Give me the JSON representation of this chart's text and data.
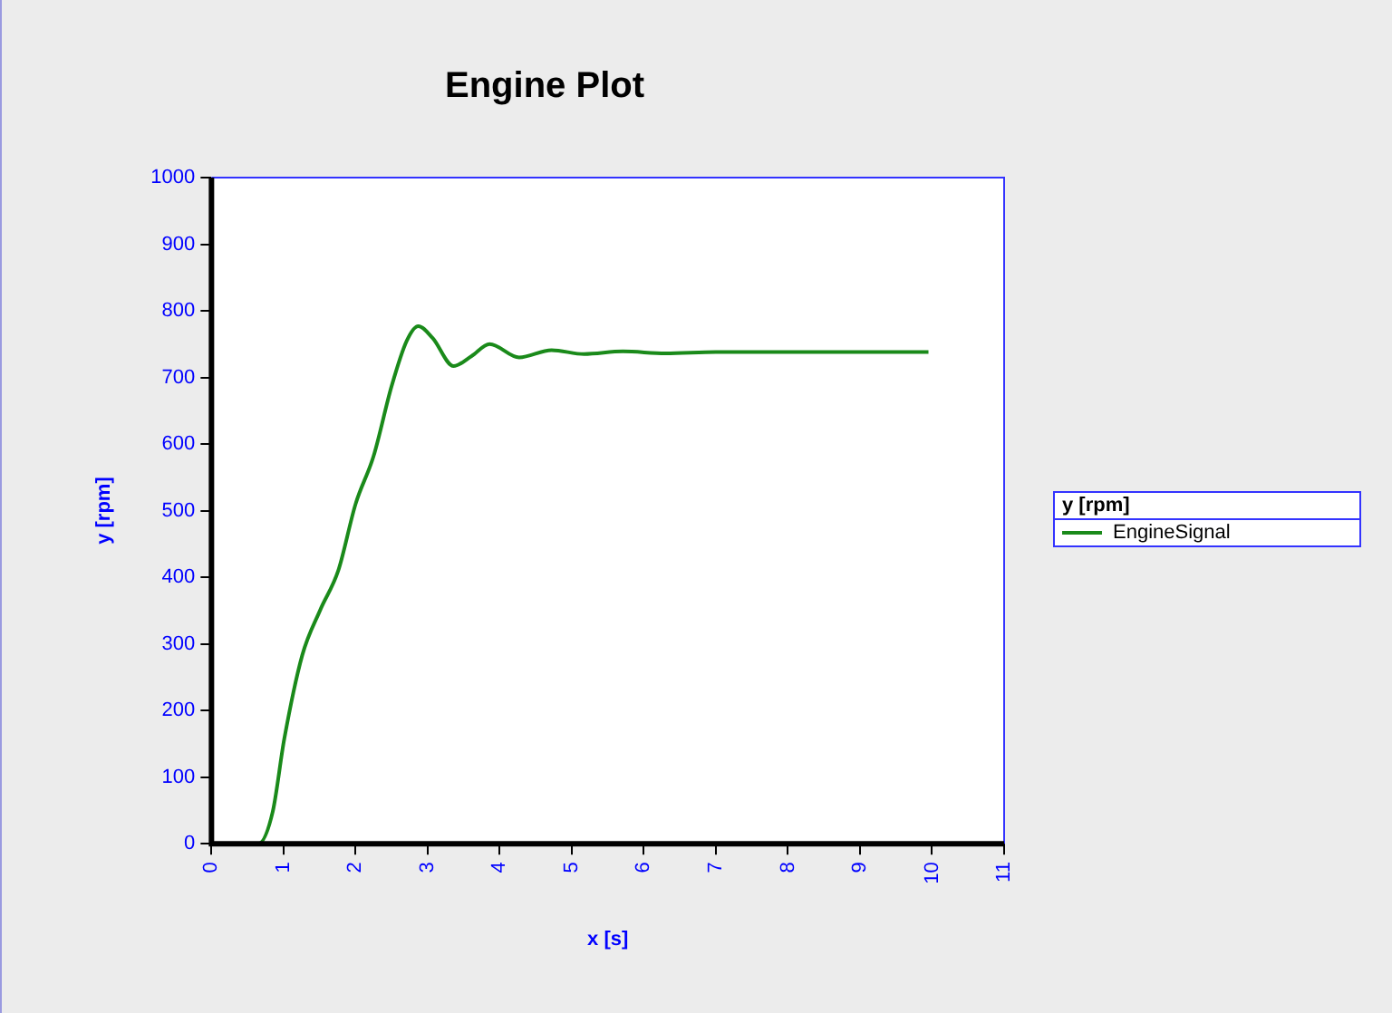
{
  "chart_data": {
    "type": "line",
    "title": "Engine Plot",
    "xlabel": "x [s]",
    "ylabel": "y [rpm]",
    "legend_title": "y [rpm]",
    "legend": "right",
    "grid": false,
    "marker": "none",
    "line_style": "solid",
    "xlim": [
      0,
      11
    ],
    "xticks": [
      0,
      1,
      2,
      3,
      4,
      5,
      6,
      7,
      8,
      9,
      10,
      11
    ],
    "ylim": [
      0,
      1000
    ],
    "yticks": [
      0,
      100,
      200,
      300,
      400,
      500,
      600,
      700,
      800,
      900,
      1000
    ],
    "series": [
      {
        "name": "EngineSignal",
        "color": "#1a8a1a",
        "x": [
          0,
          0.65,
          0.85,
          1.01,
          1.26,
          1.51,
          1.76,
          2.0,
          2.25,
          2.5,
          2.71,
          2.87,
          3.07,
          3.36,
          3.61,
          3.86,
          4.27,
          4.72,
          5.17,
          5.71,
          6.3,
          7.0,
          8.0,
          9.0,
          9.95
        ],
        "values": [
          0,
          0,
          48,
          157,
          283,
          351,
          410,
          510,
          582,
          687,
          755,
          777,
          759,
          717,
          732,
          750,
          730,
          741,
          735,
          739,
          736,
          738,
          738,
          738,
          738
        ]
      }
    ]
  }
}
